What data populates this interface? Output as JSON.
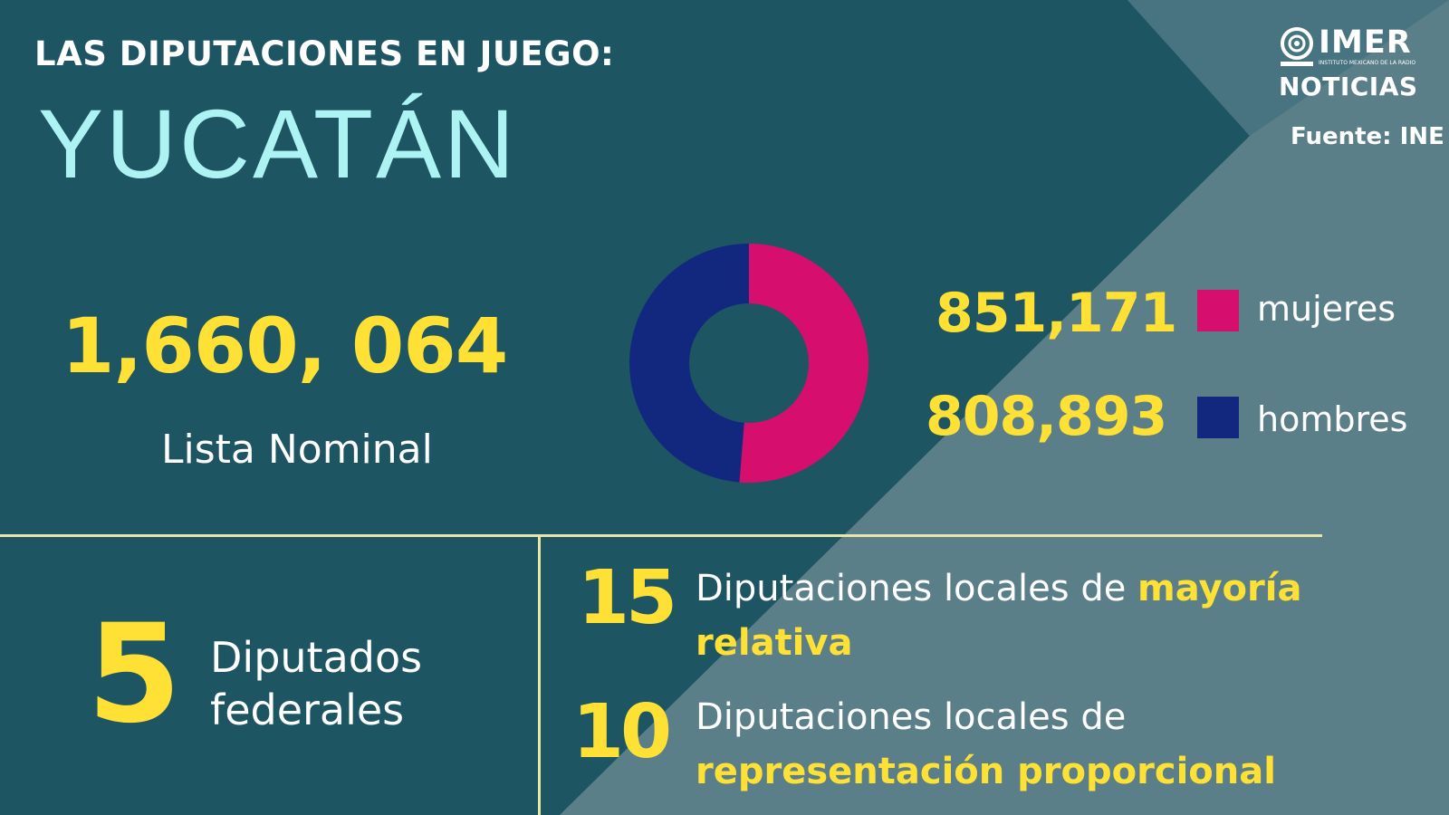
{
  "header": {
    "kicker": "LAS DIPUTACIONES EN JUEGO:",
    "title": "YUCATÁN"
  },
  "logo": {
    "name": "IMER",
    "subtitle": "INSTITUTO MEXICANO DE LA RADIO",
    "section": "NOTICIAS"
  },
  "source": "Fuente: INE",
  "lista_nominal": {
    "value": "1,660, 064",
    "label": "Lista Nominal"
  },
  "chart_data": {
    "type": "pie",
    "series": [
      {
        "name": "mujeres",
        "value": 851171,
        "label": "851,171"
      },
      {
        "name": "hombres",
        "value": 808893,
        "label": "808,893"
      }
    ],
    "legend": "right"
  },
  "colors": {
    "mujeres": "#d60e6d",
    "hombres": "#12287f",
    "accent": "#ffe135",
    "title": "#aef3f4"
  },
  "federales": {
    "count": "5",
    "label_line1": "Diputados",
    "label_line2": "federales"
  },
  "locales": [
    {
      "count": "15",
      "text_pre": "Diputaciones locales de",
      "text_hl_1": "mayoría",
      "text_hl_2": "relativa"
    },
    {
      "count": "10",
      "text_pre": "Diputaciones locales de",
      "text_hl": "representación proporcional"
    }
  ]
}
